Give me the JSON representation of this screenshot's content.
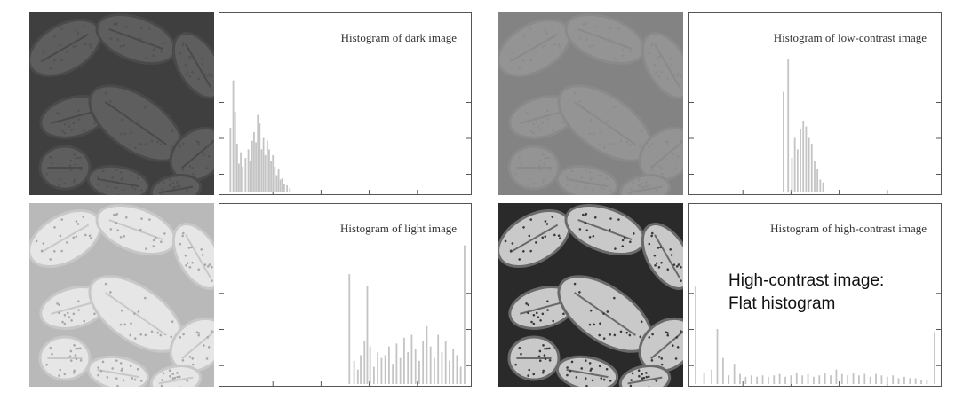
{
  "palette": {
    "dark": "#5a5a5a",
    "low": "#8d8d8d",
    "light": "#dcdcdc",
    "high": "#7a7a7a",
    "bar": "#c4c4c4",
    "axis": "#555555"
  },
  "annotation": {
    "line1": "High-contrast image:",
    "line2": "Flat histogram"
  },
  "chart_data": [
    {
      "type": "bar",
      "title": "Histogram of dark image",
      "xlim": [
        0,
        255
      ],
      "ylim": [
        0,
        1
      ],
      "bins": [
        {
          "x": 6,
          "y": 0.45
        },
        {
          "x": 9,
          "y": 0.78
        },
        {
          "x": 11,
          "y": 0.56
        },
        {
          "x": 13,
          "y": 0.34
        },
        {
          "x": 15,
          "y": 0.2
        },
        {
          "x": 17,
          "y": 0.28
        },
        {
          "x": 19,
          "y": 0.18
        },
        {
          "x": 22,
          "y": 0.24
        },
        {
          "x": 25,
          "y": 0.3
        },
        {
          "x": 27,
          "y": 0.22
        },
        {
          "x": 29,
          "y": 0.36
        },
        {
          "x": 31,
          "y": 0.42
        },
        {
          "x": 33,
          "y": 0.35
        },
        {
          "x": 35,
          "y": 0.54
        },
        {
          "x": 37,
          "y": 0.48
        },
        {
          "x": 39,
          "y": 0.3
        },
        {
          "x": 41,
          "y": 0.38
        },
        {
          "x": 43,
          "y": 0.26
        },
        {
          "x": 45,
          "y": 0.36
        },
        {
          "x": 47,
          "y": 0.3
        },
        {
          "x": 49,
          "y": 0.22
        },
        {
          "x": 51,
          "y": 0.26
        },
        {
          "x": 53,
          "y": 0.18
        },
        {
          "x": 55,
          "y": 0.12
        },
        {
          "x": 57,
          "y": 0.16
        },
        {
          "x": 59,
          "y": 0.09
        },
        {
          "x": 61,
          "y": 0.1
        },
        {
          "x": 63,
          "y": 0.06
        },
        {
          "x": 66,
          "y": 0.05
        },
        {
          "x": 69,
          "y": 0.03
        }
      ]
    },
    {
      "type": "bar",
      "title": "Histogram of low-contrast image",
      "xlim": [
        0,
        255
      ],
      "ylim": [
        0,
        1
      ],
      "bins": [
        {
          "x": 94,
          "y": 0.7
        },
        {
          "x": 99,
          "y": 0.93
        },
        {
          "x": 103,
          "y": 0.24
        },
        {
          "x": 106,
          "y": 0.38
        },
        {
          "x": 109,
          "y": 0.3
        },
        {
          "x": 112,
          "y": 0.44
        },
        {
          "x": 115,
          "y": 0.5
        },
        {
          "x": 118,
          "y": 0.46
        },
        {
          "x": 121,
          "y": 0.38
        },
        {
          "x": 124,
          "y": 0.34
        },
        {
          "x": 127,
          "y": 0.22
        },
        {
          "x": 130,
          "y": 0.16
        },
        {
          "x": 133,
          "y": 0.09
        },
        {
          "x": 136,
          "y": 0.07
        }
      ]
    },
    {
      "type": "bar",
      "title": "Histogram of light image",
      "xlim": [
        0,
        255
      ],
      "ylim": [
        0,
        1
      ],
      "bins": [
        {
          "x": 132,
          "y": 0.76
        },
        {
          "x": 137,
          "y": 0.16
        },
        {
          "x": 141,
          "y": 0.1
        },
        {
          "x": 144,
          "y": 0.2
        },
        {
          "x": 148,
          "y": 0.3
        },
        {
          "x": 151,
          "y": 0.68
        },
        {
          "x": 154,
          "y": 0.26
        },
        {
          "x": 158,
          "y": 0.12
        },
        {
          "x": 162,
          "y": 0.22
        },
        {
          "x": 166,
          "y": 0.18
        },
        {
          "x": 170,
          "y": 0.2
        },
        {
          "x": 174,
          "y": 0.26
        },
        {
          "x": 178,
          "y": 0.14
        },
        {
          "x": 182,
          "y": 0.28
        },
        {
          "x": 186,
          "y": 0.18
        },
        {
          "x": 190,
          "y": 0.32
        },
        {
          "x": 194,
          "y": 0.22
        },
        {
          "x": 198,
          "y": 0.34
        },
        {
          "x": 202,
          "y": 0.24
        },
        {
          "x": 206,
          "y": 0.16
        },
        {
          "x": 210,
          "y": 0.3
        },
        {
          "x": 214,
          "y": 0.4
        },
        {
          "x": 218,
          "y": 0.26
        },
        {
          "x": 222,
          "y": 0.18
        },
        {
          "x": 226,
          "y": 0.34
        },
        {
          "x": 230,
          "y": 0.22
        },
        {
          "x": 234,
          "y": 0.3
        },
        {
          "x": 238,
          "y": 0.16
        },
        {
          "x": 242,
          "y": 0.24
        },
        {
          "x": 246,
          "y": 0.2
        },
        {
          "x": 250,
          "y": 0.12
        },
        {
          "x": 254,
          "y": 0.96
        }
      ]
    },
    {
      "type": "bar",
      "title": "Histogram of high-contrast image",
      "xlim": [
        0,
        255
      ],
      "ylim": [
        0,
        1
      ],
      "bins": [
        {
          "x": 1,
          "y": 0.68
        },
        {
          "x": 10,
          "y": 0.08
        },
        {
          "x": 18,
          "y": 0.1
        },
        {
          "x": 24,
          "y": 0.38
        },
        {
          "x": 30,
          "y": 0.18
        },
        {
          "x": 36,
          "y": 0.06
        },
        {
          "x": 42,
          "y": 0.14
        },
        {
          "x": 48,
          "y": 0.07
        },
        {
          "x": 54,
          "y": 0.05
        },
        {
          "x": 60,
          "y": 0.06
        },
        {
          "x": 66,
          "y": 0.05
        },
        {
          "x": 72,
          "y": 0.06
        },
        {
          "x": 78,
          "y": 0.05
        },
        {
          "x": 84,
          "y": 0.06
        },
        {
          "x": 90,
          "y": 0.07
        },
        {
          "x": 96,
          "y": 0.05
        },
        {
          "x": 102,
          "y": 0.06
        },
        {
          "x": 108,
          "y": 0.08
        },
        {
          "x": 114,
          "y": 0.06
        },
        {
          "x": 120,
          "y": 0.07
        },
        {
          "x": 126,
          "y": 0.05
        },
        {
          "x": 132,
          "y": 0.06
        },
        {
          "x": 138,
          "y": 0.08
        },
        {
          "x": 144,
          "y": 0.06
        },
        {
          "x": 150,
          "y": 0.1
        },
        {
          "x": 156,
          "y": 0.07
        },
        {
          "x": 162,
          "y": 0.06
        },
        {
          "x": 168,
          "y": 0.08
        },
        {
          "x": 174,
          "y": 0.06
        },
        {
          "x": 180,
          "y": 0.07
        },
        {
          "x": 186,
          "y": 0.05
        },
        {
          "x": 192,
          "y": 0.07
        },
        {
          "x": 198,
          "y": 0.06
        },
        {
          "x": 204,
          "y": 0.05
        },
        {
          "x": 210,
          "y": 0.06
        },
        {
          "x": 216,
          "y": 0.04
        },
        {
          "x": 222,
          "y": 0.05
        },
        {
          "x": 228,
          "y": 0.04
        },
        {
          "x": 234,
          "y": 0.04
        },
        {
          "x": 240,
          "y": 0.03
        },
        {
          "x": 246,
          "y": 0.03
        },
        {
          "x": 254,
          "y": 0.36
        }
      ]
    }
  ]
}
